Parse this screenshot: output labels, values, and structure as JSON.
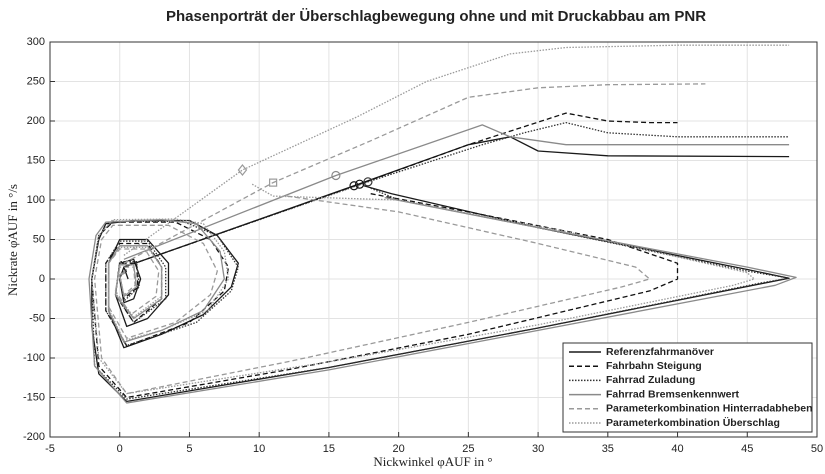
{
  "chart_data": {
    "type": "line",
    "title": "Phasenporträt der Überschlagbewegung ohne und mit Druckabbau am PNR",
    "xlabel": "Nickwinkel φAUF in °",
    "ylabel": "Nickrate φ̇AUF in °/s",
    "xlim": [
      -5,
      50
    ],
    "xticks": [
      -5,
      0,
      5,
      10,
      15,
      20,
      25,
      30,
      35,
      40,
      45,
      50
    ],
    "ylim": [
      -200,
      300
    ],
    "yticks": [
      -200,
      -150,
      -100,
      -50,
      0,
      50,
      100,
      150,
      200,
      250,
      300
    ],
    "grid": true,
    "legend": "lower right",
    "series": [
      {
        "name": "Referenzfahrmanöver",
        "color": "#1a1a1a",
        "dash": "solid",
        "x": [
          0.3,
          16.8,
          25,
          28,
          30,
          35,
          48,
          null,
          17.5,
          19.5,
          30,
          45,
          48,
          46,
          30,
          15,
          0.5,
          -1.5,
          -2,
          -2,
          -1.5,
          -1,
          1,
          5,
          7,
          8.5,
          8,
          6,
          3,
          0.3,
          -0.8,
          -0.8,
          0,
          2,
          3.5,
          3.5,
          2,
          0.5,
          -0.3,
          0,
          1,
          1.5,
          1,
          0.3,
          0,
          0.3,
          0.6
        ],
        "values": [
          15,
          118,
          170,
          180,
          162,
          156,
          155,
          null,
          118,
          108,
          65,
          12,
          1,
          -6,
          -62,
          -112,
          -155,
          -120,
          -60,
          0,
          50,
          70,
          74,
          74,
          55,
          20,
          -10,
          -45,
          -70,
          -87,
          -40,
          20,
          50,
          50,
          20,
          -20,
          -50,
          -60,
          -20,
          20,
          25,
          0,
          -25,
          -30,
          0,
          15,
          0
        ],
        "marker": {
          "x": 16.8,
          "y": 118,
          "shape": "circle"
        }
      },
      {
        "name": "Fahrbahn Steigung",
        "color": "#111111",
        "dash": "dashed",
        "x": [
          0.3,
          17.2,
          25,
          32,
          35,
          38,
          40,
          null,
          18,
          25,
          35,
          40,
          40,
          38,
          25,
          12,
          0.5,
          -1.5,
          -2,
          -1.5,
          -0.5,
          4,
          6.5,
          7.8,
          7.5,
          5,
          0.5,
          -1,
          -1,
          0,
          2,
          3,
          3,
          1,
          -0.3,
          0,
          1.2,
          1.3,
          0.3,
          0,
          0.5
        ],
        "values": [
          15,
          120,
          170,
          210,
          200,
          198,
          198,
          null,
          108,
          85,
          50,
          20,
          0,
          -15,
          -70,
          -115,
          -150,
          -110,
          0,
          55,
          72,
          72,
          50,
          15,
          -15,
          -55,
          -85,
          -40,
          20,
          45,
          45,
          15,
          -25,
          -55,
          -20,
          20,
          20,
          -10,
          -25,
          5,
          10
        ],
        "marker": {
          "x": 17.2,
          "y": 120,
          "shape": "circle"
        }
      },
      {
        "name": "Fahrrad Zuladung",
        "color": "#333333",
        "dash": "dotted",
        "x": [
          0.3,
          17.8,
          26,
          29,
          32,
          35,
          40,
          48,
          null,
          18,
          20,
          30,
          45,
          48,
          46,
          30,
          15,
          0.5,
          -1.8,
          -2,
          -1.5,
          -0.5,
          4.5,
          7,
          8.5,
          8,
          5.5,
          0.5,
          -1,
          -1,
          0,
          2,
          3.3,
          3.3,
          1,
          -0.3,
          0,
          1.2,
          1.4,
          0.3,
          0,
          0.5
        ],
        "values": [
          15,
          123,
          170,
          185,
          198,
          185,
          180,
          180,
          null,
          115,
          100,
          65,
          10,
          1,
          -5,
          -62,
          -112,
          -152,
          -110,
          0,
          55,
          73,
          73,
          55,
          15,
          -15,
          -55,
          -84,
          -40,
          20,
          48,
          48,
          15,
          -25,
          -55,
          -20,
          22,
          22,
          -10,
          -28,
          5,
          12
        ],
        "marker": {
          "x": 17.8,
          "y": 123,
          "shape": "circle"
        }
      },
      {
        "name": "Fahrrad Bremsenkennwert",
        "color": "#8a8a8a",
        "dash": "solid",
        "x": [
          0.3,
          15.5,
          26,
          28,
          32,
          48,
          null,
          19,
          30,
          45,
          48.5,
          47,
          30,
          15,
          0.5,
          -1.8,
          -2.2,
          -1.7,
          -1,
          3,
          5.5,
          7.2,
          7.5,
          6,
          3,
          0.3,
          -0.8,
          -0.8,
          0,
          2,
          3,
          3,
          1,
          -0.3,
          0,
          1,
          1.2,
          0.3,
          0,
          0.4
        ],
        "values": [
          25,
          131,
          195,
          180,
          170,
          170,
          null,
          103,
          65,
          15,
          2,
          -8,
          -65,
          -115,
          -157,
          -110,
          0,
          55,
          72,
          75,
          70,
          35,
          0,
          -40,
          -65,
          -80,
          -40,
          20,
          42,
          42,
          15,
          -25,
          -50,
          -20,
          18,
          18,
          -10,
          -22,
          5,
          10
        ],
        "marker": {
          "x": 15.5,
          "y": 131,
          "shape": "circle"
        }
      },
      {
        "name": "Parameterkombination Hinterradabheben",
        "color": "#9a9a9a",
        "dash": "dashed",
        "x": [
          0.3,
          11,
          18,
          25,
          30,
          35,
          42,
          null,
          12,
          20,
          30,
          37,
          38,
          36,
          25,
          12,
          0.5,
          -1.3,
          -1.8,
          -1.3,
          -0.5,
          3.5,
          6,
          7,
          6.5,
          4,
          0.5,
          -0.8,
          -0.8,
          0,
          1.8,
          2.8,
          2.6,
          0.8,
          -0.3,
          0,
          1,
          1.1,
          0.3,
          0,
          0.4
        ],
        "values": [
          20,
          122,
          175,
          230,
          242,
          246,
          247,
          null,
          105,
          85,
          45,
          15,
          0,
          -10,
          -55,
          -105,
          -145,
          -100,
          0,
          50,
          68,
          68,
          45,
          10,
          -20,
          -55,
          -75,
          -35,
          20,
          38,
          38,
          10,
          -22,
          -45,
          -15,
          15,
          15,
          -8,
          -20,
          4,
          8
        ],
        "marker": {
          "x": 11,
          "y": 122,
          "shape": "square"
        }
      },
      {
        "name": "Parameterkombination Überschlag",
        "color": "#9a9a9a",
        "dash": "dotted",
        "x": [
          0.3,
          8.8,
          17,
          22,
          28,
          32,
          40,
          48,
          null,
          9.5,
          11,
          20,
          32,
          45,
          45.5,
          44,
          30,
          15,
          0.5,
          -1.5,
          -2,
          -1.5,
          -0.5,
          4,
          6,
          7.5,
          7.8,
          6.3,
          3,
          0.3,
          -0.8,
          -0.8,
          0,
          2,
          3,
          3,
          1,
          -0.3,
          0,
          1,
          1.2,
          0.3,
          0,
          0.4
        ],
        "values": [
          30,
          138,
          205,
          250,
          285,
          293,
          296,
          296,
          null,
          120,
          105,
          100,
          60,
          8,
          0,
          -8,
          -58,
          -105,
          -145,
          -100,
          0,
          55,
          75,
          76,
          70,
          35,
          0,
          -40,
          -65,
          -78,
          -38,
          20,
          40,
          40,
          15,
          -22,
          -48,
          -18,
          18,
          18,
          -10,
          -22,
          5,
          10
        ],
        "marker": {
          "x": 8.8,
          "y": 138,
          "shape": "diamond"
        }
      }
    ]
  }
}
